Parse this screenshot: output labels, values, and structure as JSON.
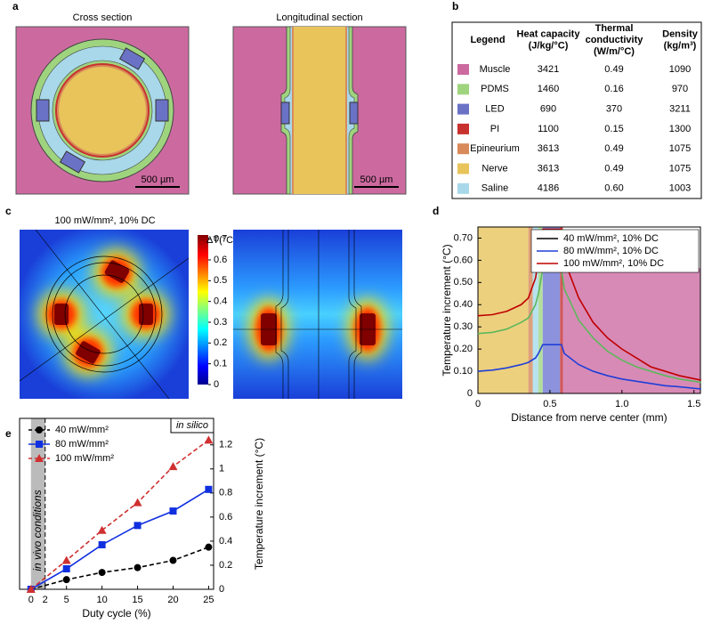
{
  "panel_labels": [
    "a",
    "b",
    "c",
    "d",
    "e"
  ],
  "panel_a": {
    "titles": [
      "Cross section",
      "Longitudinal section"
    ],
    "scale_bars": [
      "500 µm",
      "500 µm"
    ]
  },
  "panel_b": {
    "header": [
      [
        "Legend"
      ],
      [
        "Heat capacity",
        "(J/kg/°C)"
      ],
      [
        "Thermal",
        "conductivity",
        "(W/m/°C)"
      ],
      [
        "Density",
        "(kg/m³)"
      ]
    ],
    "rows": [
      {
        "color": "#cc6aa0",
        "cells": [
          "Muscle",
          "3421",
          "0.49",
          "1090"
        ]
      },
      {
        "color": "#9fd47e",
        "cells": [
          "PDMS",
          "1460",
          "0.16",
          "970"
        ]
      },
      {
        "color": "#6a72c6",
        "cells": [
          "LED",
          "690",
          "370",
          "3211"
        ]
      },
      {
        "color": "#c8322e",
        "cells": [
          "PI",
          "1100",
          "0.15",
          "1300"
        ]
      },
      {
        "color": "#d98a5a",
        "cells": [
          "Epineurium",
          "3613",
          "0.49",
          "1075"
        ]
      },
      {
        "color": "#e8c45a",
        "cells": [
          "Nerve",
          "3613",
          "0.49",
          "1075"
        ]
      },
      {
        "color": "#a8d8ea",
        "cells": [
          "Saline",
          "4186",
          "0.60",
          "1003"
        ]
      }
    ]
  },
  "panel_c": {
    "title": "100 mW/mm², 10% DC",
    "colorbar": {
      "label": "ΔT(°C)",
      "lim": [
        0,
        0.72
      ],
      "ticks": [
        0,
        0.1,
        0.2,
        0.3,
        0.4,
        0.5,
        0.6,
        0.7
      ]
    }
  },
  "chart_data": [
    {
      "type": "line",
      "xlabel": "Distance from nerve center (mm)",
      "ylabel": "Temperature increment (°C)",
      "x": [
        0,
        0.1,
        0.2,
        0.3,
        0.35,
        0.4,
        0.42,
        0.45,
        0.5,
        0.58,
        0.6,
        0.7,
        0.8,
        0.9,
        1.0,
        1.1,
        1.2,
        1.3,
        1.4,
        1.55
      ],
      "xlim": [
        0,
        1.545
      ],
      "xticks": [
        0,
        0.5,
        {
          "value": 1,
          "label": "1.0"
        },
        1.5
      ],
      "ylim": [
        0,
        0.75
      ],
      "yticks": [
        0,
        {
          "value": 0.1,
          "label": "0.10"
        },
        {
          "value": 0.2,
          "label": "0.20"
        },
        {
          "value": 0.3,
          "label": "0.30"
        },
        {
          "value": 0.4,
          "label": "0.40"
        },
        {
          "value": 0.5,
          "label": "0.50"
        },
        {
          "value": 0.6,
          "label": "0.60"
        },
        {
          "value": 0.7,
          "label": "0.70"
        }
      ],
      "bands": [
        {
          "x": [
            0,
            0.35
          ],
          "color": "#ecd07e"
        },
        {
          "x": [
            0.35,
            0.38
          ],
          "color": "#dea07a"
        },
        {
          "x": [
            0.38,
            0.42
          ],
          "color": "#b8e2ee"
        },
        {
          "x": [
            0.42,
            0.45
          ],
          "color": "#b4de9c"
        },
        {
          "x": [
            0.45,
            0.57
          ],
          "color": "#8c93dc"
        },
        {
          "x": [
            0.57,
            0.59
          ],
          "color": "#d0585a"
        },
        {
          "x": [
            0.59,
            1.545
          ],
          "color": "#d88ab6",
          "ymax": 0.565
        }
      ],
      "legend": "top-right",
      "series": [
        {
          "name": "40 mW/mm², 10% DC",
          "color": "#1f3fd8",
          "legend_color": "#000000",
          "values": [
            0.1,
            0.105,
            0.115,
            0.13,
            0.14,
            0.16,
            0.18,
            0.22,
            0.22,
            0.22,
            0.18,
            0.13,
            0.1,
            0.08,
            0.065,
            0.055,
            0.045,
            0.035,
            0.03,
            0.02
          ]
        },
        {
          "name": "80 mW/mm², 10% DC",
          "color": "#5cb85c",
          "legend_color": "#1f3fd8",
          "values": [
            0.27,
            0.275,
            0.29,
            0.32,
            0.34,
            0.4,
            0.45,
            0.56,
            0.56,
            0.56,
            0.47,
            0.33,
            0.25,
            0.19,
            0.15,
            0.12,
            0.1,
            0.08,
            0.065,
            0.05
          ]
        },
        {
          "name": "100 mW/mm², 10% DC",
          "color": "#c00000",
          "legend_color": "#c00000",
          "values": [
            0.35,
            0.355,
            0.37,
            0.4,
            0.43,
            0.52,
            0.6,
            0.74,
            0.74,
            0.74,
            0.6,
            0.43,
            0.32,
            0.25,
            0.2,
            0.16,
            0.12,
            0.1,
            0.08,
            0.06
          ]
        }
      ]
    },
    {
      "type": "line",
      "xlabel": "Duty cycle (%)",
      "ylabel": "Temperature increment (°C)",
      "y_axis_side": "right",
      "x": [
        0,
        5,
        10,
        15,
        20,
        25
      ],
      "xlim": [
        -1.6,
        25.7
      ],
      "xticks": [
        0,
        2,
        5,
        10,
        15,
        20,
        25
      ],
      "ylim": [
        0,
        1.42
      ],
      "yticks": [
        0,
        0.2,
        0.4,
        0.6,
        0.8,
        1,
        1.2
      ],
      "shade": {
        "x": [
          0,
          2
        ],
        "label": "in vivo conditions",
        "color": "#bbbbbb"
      },
      "annotation": "in silico",
      "legend": "top-left",
      "series": [
        {
          "name": "40 mW/mm²",
          "color": "#000000",
          "marker": "circle",
          "dashed": true,
          "values": [
            0,
            0.08,
            0.14,
            0.18,
            0.24,
            0.35
          ]
        },
        {
          "name": "80 mW/mm²",
          "color": "#1030e0",
          "marker": "square",
          "dashed": false,
          "values": [
            0,
            0.17,
            0.37,
            0.53,
            0.65,
            0.83
          ]
        },
        {
          "name": "100 mW/mm²",
          "color": "#d03030",
          "marker": "triangle",
          "dashed": true,
          "values": [
            0,
            0.24,
            0.49,
            0.72,
            1.02,
            1.24
          ]
        }
      ]
    }
  ]
}
